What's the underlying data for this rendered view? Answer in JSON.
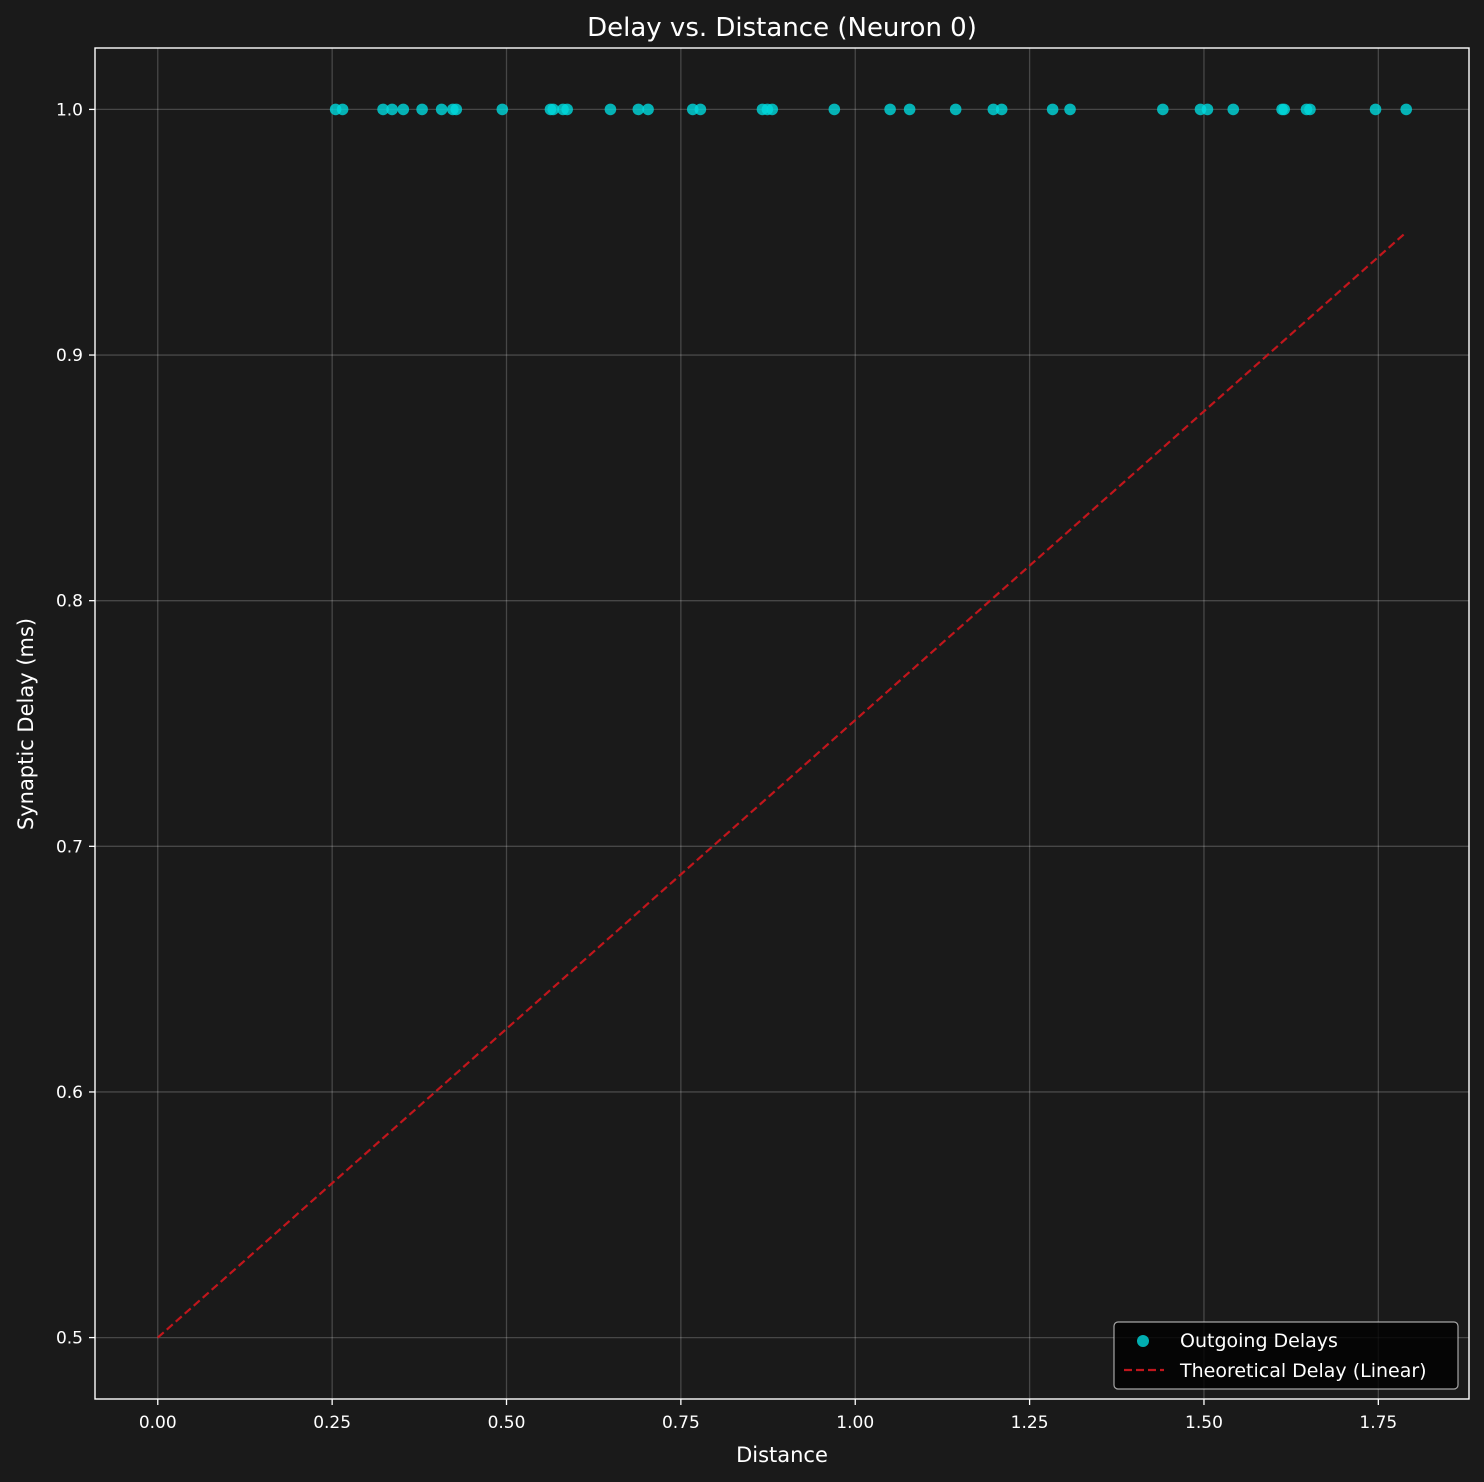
{
  "chart_data": {
    "type": "scatter",
    "title": "Delay vs. Distance (Neuron 0)",
    "xlabel": "Distance",
    "ylabel": "Synaptic Delay (ms)",
    "xlim": [
      -0.09,
      1.88
    ],
    "ylim": [
      0.475,
      1.025
    ],
    "xticks": [
      0.0,
      0.25,
      0.5,
      0.75,
      1.0,
      1.25,
      1.5,
      1.75
    ],
    "xtick_labels": [
      "0.00",
      "0.25",
      "0.50",
      "0.75",
      "1.00",
      "1.25",
      "1.50",
      "1.75"
    ],
    "yticks": [
      0.5,
      0.6,
      0.7,
      0.8,
      0.9,
      1.0
    ],
    "ytick_labels": [
      "0.5",
      "0.6",
      "0.7",
      "0.8",
      "0.9",
      "1.0"
    ],
    "grid": true,
    "legend_position": "lower-right",
    "colors": {
      "background": "#1a1a1a",
      "axes": "#1a1a1a",
      "scatter": "#00d8dc",
      "line": "#c0161c",
      "legend_bg": "#000000"
    },
    "series": [
      {
        "name": "Outgoing Delays",
        "kind": "scatter",
        "x": [
          0.255,
          0.265,
          0.323,
          0.336,
          0.352,
          0.379,
          0.407,
          0.423,
          0.428,
          0.494,
          0.563,
          0.567,
          0.581,
          0.587,
          0.649,
          0.689,
          0.703,
          0.767,
          0.778,
          0.867,
          0.874,
          0.881,
          0.97,
          1.05,
          1.078,
          1.144,
          1.198,
          1.21,
          1.283,
          1.308,
          1.441,
          1.495,
          1.505,
          1.542,
          1.612,
          1.615,
          1.647,
          1.652,
          1.746,
          1.79
        ],
        "y": [
          1.0,
          1.0,
          1.0,
          1.0,
          1.0,
          1.0,
          1.0,
          1.0,
          1.0,
          1.0,
          1.0,
          1.0,
          1.0,
          1.0,
          1.0,
          1.0,
          1.0,
          1.0,
          1.0,
          1.0,
          1.0,
          1.0,
          1.0,
          1.0,
          1.0,
          1.0,
          1.0,
          1.0,
          1.0,
          1.0,
          1.0,
          1.0,
          1.0,
          1.0,
          1.0,
          1.0,
          1.0,
          1.0,
          1.0,
          1.0
        ]
      },
      {
        "name": "Theoretical Delay (Linear)",
        "kind": "line",
        "style": "dashed",
        "x": [
          0.0,
          1.79
        ],
        "y": [
          0.5,
          0.95
        ]
      }
    ]
  }
}
